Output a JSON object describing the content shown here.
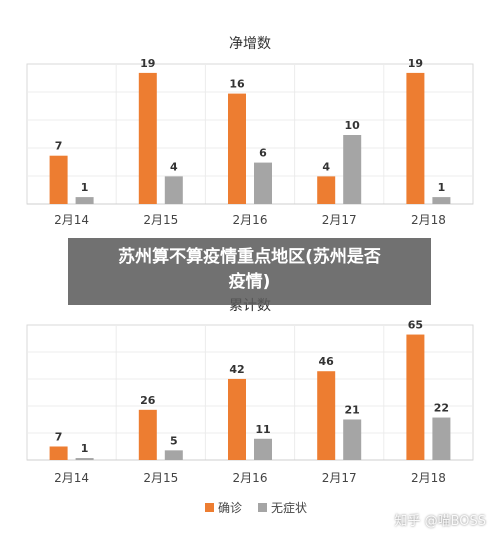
{
  "colors": {
    "confirmed": "#ED7D31",
    "asymptomatic": "#A5A5A5"
  },
  "chart_data": [
    {
      "type": "bar",
      "title": "净增数",
      "categories": [
        "2月14",
        "2月15",
        "2月16",
        "2月17",
        "2月18"
      ],
      "series": [
        {
          "name": "确诊",
          "values": [
            7,
            19,
            16,
            4,
            19
          ]
        },
        {
          "name": "无症状",
          "values": [
            1,
            4,
            6,
            10,
            1
          ]
        }
      ],
      "ylim": [
        0,
        20
      ],
      "grid": true
    },
    {
      "type": "bar",
      "title": "累计数",
      "categories": [
        "2月14",
        "2月15",
        "2月16",
        "2月17",
        "2月18"
      ],
      "series": [
        {
          "name": "确诊",
          "values": [
            7,
            26,
            42,
            46,
            65
          ]
        },
        {
          "name": "无症状",
          "values": [
            1,
            5,
            11,
            21,
            22
          ]
        }
      ],
      "ylim": [
        0,
        70
      ],
      "grid": true,
      "legend": "bottom"
    }
  ],
  "overlay": {
    "line1": "苏州算不算疫情重点地区(苏州是否",
    "line2": "疫情)"
  },
  "watermark": "知乎 @喵BOSS"
}
